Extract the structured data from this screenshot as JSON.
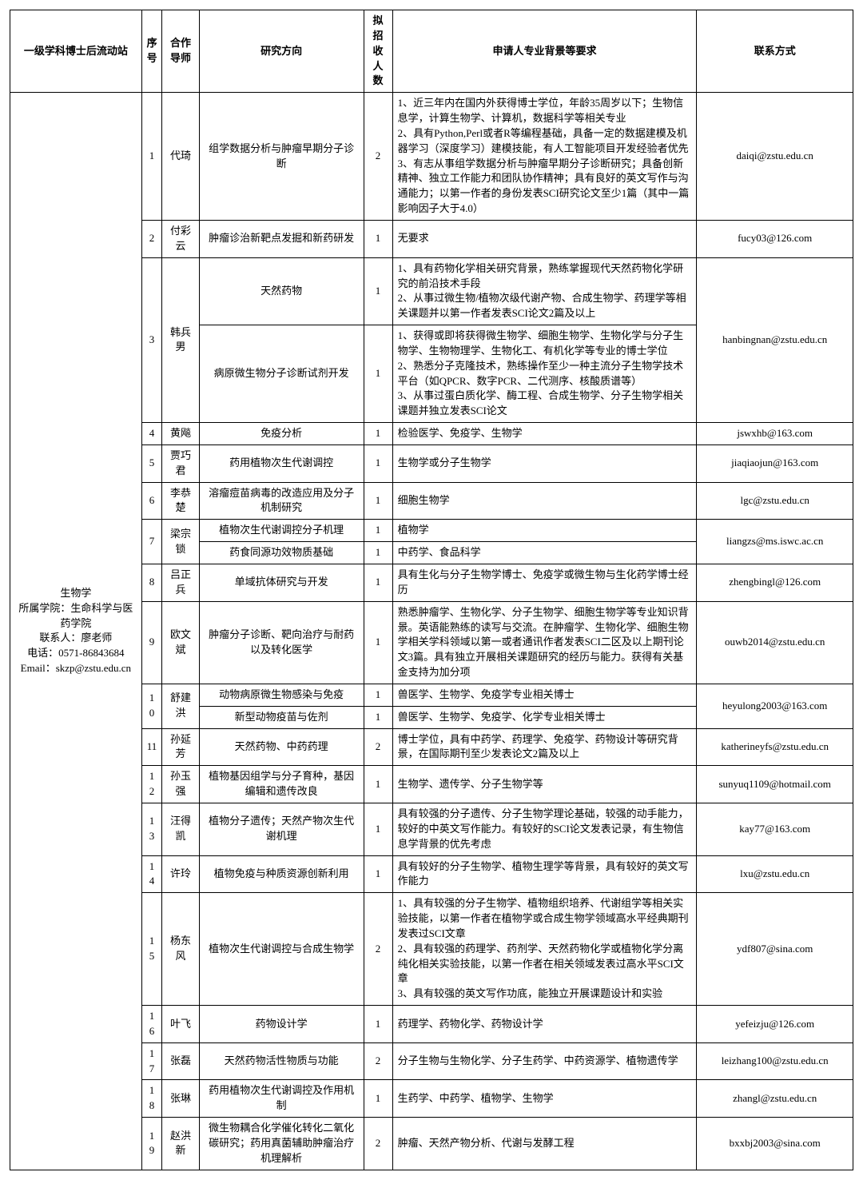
{
  "header": {
    "station": "一级学科博士后流动站",
    "seq": "序号",
    "advisor": "合作导师",
    "direction": "研究方向",
    "num": "拟招收人数",
    "req": "申请人专业背景等要求",
    "contact": "联系方式"
  },
  "station_cell": "生物学\n所属学院：生命科学与医药学院\n联系人：廖老师\n电话：0571-86843684\nEmail：skzp@zstu.edu.cn",
  "rows": {
    "r1": {
      "seq": "1",
      "adv": "代琦",
      "dir": "组学数据分析与肿瘤早期分子诊断",
      "num": "2",
      "req": "1、近三年内在国内外获得博士学位，年龄35周岁以下；生物信息学，计算生物学、计算机，数据科学等相关专业\n2、具有Python,Perl或者R等编程基础，具备一定的数据建模及机器学习（深度学习）建模技能，有人工智能项目开发经验者优先\n3、有志从事组学数据分析与肿瘤早期分子诊断研究；具备创新精神、独立工作能力和团队协作精神；具有良好的英文写作与沟通能力；以第一作者的身份发表SCI研究论文至少1篇（其中一篇影响因子大于4.0）",
      "contact": "daiqi@zstu.edu.cn"
    },
    "r2": {
      "seq": "2",
      "adv": "付彩云",
      "dir": "肿瘤诊治新靶点发掘和新药研发",
      "num": "1",
      "req": "无要求",
      "contact": "fucy03@126.com"
    },
    "r3a": {
      "seq": "3",
      "adv": "韩兵男",
      "dir": "天然药物",
      "num": "1",
      "req": "1、具有药物化学相关研究背景，熟练掌握现代天然药物化学研究的前沿技术手段\n2、从事过微生物/植物次级代谢产物、合成生物学、药理学等相关课题并以第一作者发表SCI论文2篇及以上",
      "contact": "hanbingnan@zstu.edu.cn"
    },
    "r3b": {
      "dir": "病原微生物分子诊断试剂开发",
      "num": "1",
      "req": "1、获得或即将获得微生物学、细胞生物学、生物化学与分子生物学、生物物理学、生物化工、有机化学等专业的博士学位\n2、熟悉分子克隆技术，熟练操作至少一种主流分子生物学技术平台（如QPCR、数字PCR、二代测序、核酸质谱等）\n3、从事过蛋白质化学、酶工程、合成生物学、分子生物学相关课题并独立发表SCI论文"
    },
    "r4": {
      "seq": "4",
      "adv": "黄飚",
      "dir": "免疫分析",
      "num": "1",
      "req": "检验医学、免疫学、生物学",
      "contact": "jswxhb@163.com"
    },
    "r5": {
      "seq": "5",
      "adv": "贾巧君",
      "dir": "药用植物次生代谢调控",
      "num": "1",
      "req": "生物学或分子生物学",
      "contact": "jiaqiaojun@163.com"
    },
    "r6": {
      "seq": "6",
      "adv": "李恭楚",
      "dir": "溶瘤痘苗病毒的改造应用及分子机制研究",
      "num": "1",
      "req": "细胞生物学",
      "contact": "lgc@zstu.edu.cn"
    },
    "r7a": {
      "seq": "7",
      "adv": "梁宗锁",
      "dir": "植物次生代谢调控分子机理",
      "num": "1",
      "req": "植物学",
      "contact": "liangzs@ms.iswc.ac.cn"
    },
    "r7b": {
      "dir": "药食同源功效物质基础",
      "num": "1",
      "req": "中药学、食品科学"
    },
    "r8": {
      "seq": "8",
      "adv": "吕正兵",
      "dir": "单域抗体研究与开发",
      "num": "1",
      "req": "具有生化与分子生物学博士、免疫学或微生物与生化药学博士经历",
      "contact": "zhengbingl@126.com"
    },
    "r9": {
      "seq": "9",
      "adv": "欧文斌",
      "dir": "肿瘤分子诊断、靶向治疗与耐药以及转化医学",
      "num": "1",
      "req": "熟悉肿瘤学、生物化学、分子生物学、细胞生物学等专业知识背景。英语能熟练的读写与交流。在肿瘤学、生物化学、细胞生物学相关学科领域以第一或者通讯作者发表SCI二区及以上期刊论文3篇。具有独立开展相关课题研究的经历与能力。获得有关基金支持为加分项",
      "contact": "ouwb2014@zstu.edu.cn"
    },
    "r10a": {
      "seq": "10",
      "adv": "舒建洪",
      "dir": "动物病原微生物感染与免疫",
      "num": "1",
      "req": "兽医学、生物学、免疫学专业相关博士",
      "contact": "heyulong2003@163.com"
    },
    "r10b": {
      "dir": "新型动物疫苗与佐剂",
      "num": "1",
      "req": "兽医学、生物学、免疫学、化学专业相关博士"
    },
    "r11": {
      "seq": "11",
      "adv": "孙延芳",
      "dir": "天然药物、中药药理",
      "num": "2",
      "req": "博士学位，具有中药学、药理学、免疫学、药物设计等研究背景，在国际期刊至少发表论文2篇及以上",
      "contact": "katherineyfs@zstu.edu.cn"
    },
    "r12": {
      "seq": "12",
      "adv": "孙玉强",
      "dir": "植物基因组学与分子育种，基因编辑和遗传改良",
      "num": "1",
      "req": "生物学、遗传学、分子生物学等",
      "contact": "sunyuq1109@hotmail.com"
    },
    "r13": {
      "seq": "13",
      "adv": "汪得凯",
      "dir": "植物分子遗传；天然产物次生代谢机理",
      "num": "1",
      "req": "具有较强的分子遗传、分子生物学理论基础，较强的动手能力，较好的中英文写作能力。有较好的SCI论文发表记录，有生物信息学背景的优先考虑",
      "contact": "kay77@163.com"
    },
    "r14": {
      "seq": "14",
      "adv": "许玲",
      "dir": "植物免疫与种质资源创新利用",
      "num": "1",
      "req": "具有较好的分子生物学、植物生理学等背景，具有较好的英文写作能力",
      "contact": "lxu@zstu.edu.cn"
    },
    "r15": {
      "seq": "15",
      "adv": "杨东风",
      "dir": "植物次生代谢调控与合成生物学",
      "num": "2",
      "req": "1、具有较强的分子生物学、植物组织培养、代谢组学等相关实验技能，以第一作者在植物学或合成生物学领域高水平经典期刊发表过SCI文章\n2、具有较强的药理学、药剂学、天然药物化学或植物化学分离纯化相关实验技能，以第一作者在相关领域发表过高水平SCI文章\n3、具有较强的英文写作功底，能独立开展课题设计和实验",
      "contact": "ydf807@sina.com"
    },
    "r16": {
      "seq": "16",
      "adv": "叶飞",
      "dir": "药物设计学",
      "num": "1",
      "req": "药理学、药物化学、药物设计学",
      "contact": "yefeizju@126.com"
    },
    "r17": {
      "seq": "17",
      "adv": "张磊",
      "dir": "天然药物活性物质与功能",
      "num": "2",
      "req": "分子生物与生物化学、分子生药学、中药资源学、植物遗传学",
      "contact": "leizhang100@zstu.edu.cn"
    },
    "r18": {
      "seq": "18",
      "adv": "张琳",
      "dir": "药用植物次生代谢调控及作用机制",
      "num": "1",
      "req": "生药学、中药学、植物学、生物学",
      "contact": "zhangl@zstu.edu.cn"
    },
    "r19": {
      "seq": "19",
      "adv": "赵洪新",
      "dir": "微生物耦合化学催化转化二氧化碳研究；药用真菌辅助肿瘤治疗机理解析",
      "num": "2",
      "req": "肿瘤、天然产物分析、代谢与发酵工程",
      "contact": "bxxbj2003@sina.com"
    }
  }
}
